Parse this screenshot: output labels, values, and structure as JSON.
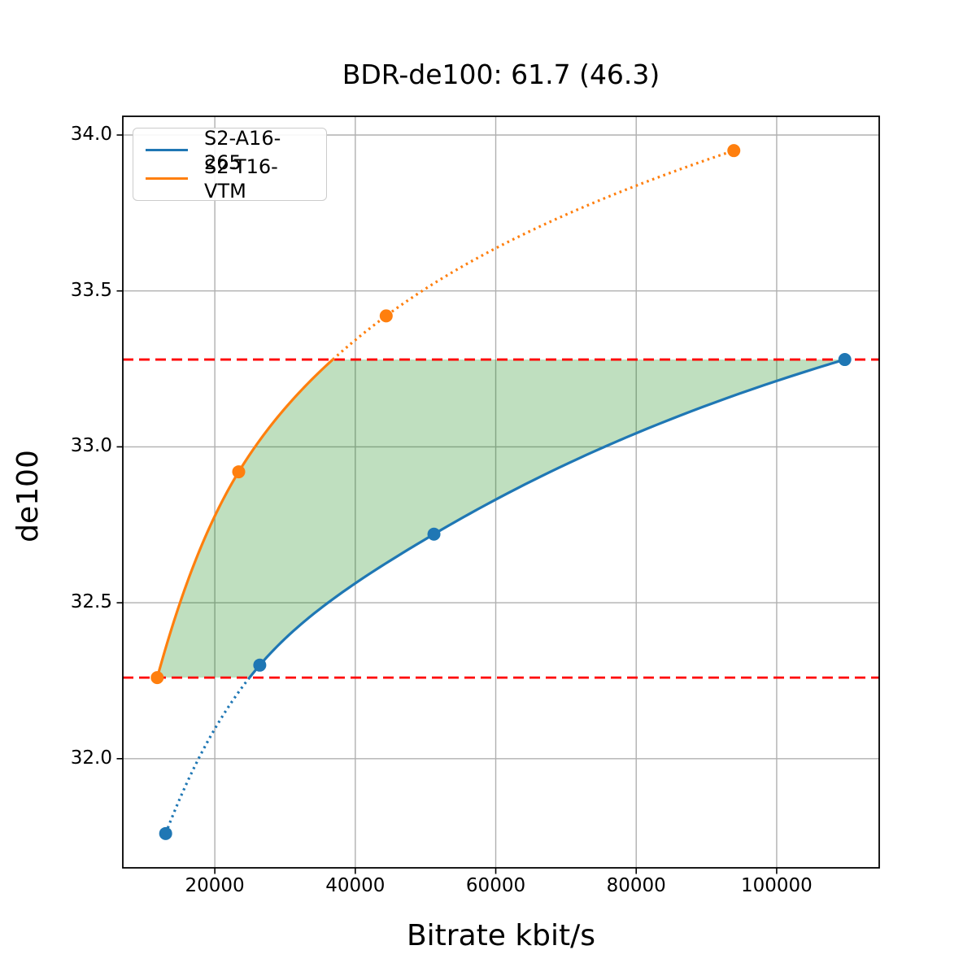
{
  "title": "BDR-de100: 61.7 (46.3)",
  "chart_data": {
    "type": "line",
    "title": "BDR-de100: 61.7 (46.3)",
    "xlabel": "Bitrate kbit/s",
    "ylabel": "de100",
    "xlim": [
      6900,
      114600
    ],
    "ylim": [
      31.65,
      34.06
    ],
    "grid": true,
    "legend_position": "upper left",
    "x_ticks": [
      20000,
      40000,
      60000,
      80000,
      100000
    ],
    "x_tick_labels": [
      "20000",
      "40000",
      "60000",
      "80000",
      "100000"
    ],
    "y_ticks": [
      32.0,
      32.5,
      33.0,
      33.5,
      34.0
    ],
    "y_tick_labels": [
      "32.0",
      "32.5",
      "33.0",
      "33.5",
      "34.0"
    ],
    "series": [
      {
        "name": "S2-A16-265",
        "color": "#1f77b4",
        "x": [
          13000,
          26400,
          51200,
          109700
        ],
        "y": [
          31.76,
          32.3,
          32.72,
          33.28
        ]
      },
      {
        "name": "S2-T16-VTM",
        "color": "#ff7f0e",
        "x": [
          11800,
          23400,
          44400,
          93900
        ],
        "y": [
          32.26,
          32.92,
          33.42,
          33.95
        ]
      }
    ],
    "overlap_lines": {
      "color": "#ff0000",
      "high": 33.28,
      "low": 32.26,
      "style": "dashed"
    },
    "bd_fill": {
      "color": "#008000",
      "opacity": 0.25
    },
    "grid_color": "#b0b0b0",
    "spine_color": "#000000"
  }
}
